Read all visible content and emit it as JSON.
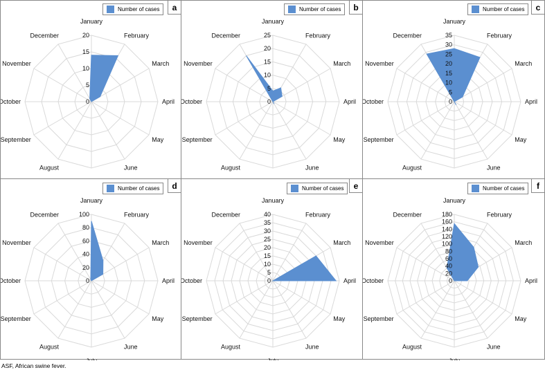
{
  "legend_label": "Number of cases",
  "months": [
    "January",
    "February",
    "March",
    "April",
    "May",
    "June",
    "July",
    "August",
    "September",
    "October",
    "November",
    "December"
  ],
  "footnote": "ASF, African swine fever.",
  "colors": {
    "fill": "#5b8fd0",
    "grid": "#d9d9d9",
    "border": "#888888"
  },
  "chart_data": [
    {
      "type": "radar",
      "panel": "a",
      "ticks": [
        0,
        5,
        10,
        15,
        20
      ],
      "rmax": 20,
      "series": [
        {
          "name": "Number of cases",
          "values": [
            14,
            16,
            3,
            0,
            0,
            0,
            0,
            0,
            0,
            0,
            0,
            1
          ]
        }
      ]
    },
    {
      "type": "radar",
      "panel": "b",
      "ticks": [
        0,
        5,
        10,
        15,
        20,
        25
      ],
      "rmax": 25,
      "series": [
        {
          "name": "Number of cases",
          "values": [
            4,
            6,
            4,
            0,
            0,
            1,
            0,
            0,
            0,
            0,
            0,
            20
          ]
        }
      ]
    },
    {
      "type": "radar",
      "panel": "c",
      "ticks": [
        0,
        5,
        10,
        15,
        20,
        25,
        30,
        35
      ],
      "rmax": 35,
      "series": [
        {
          "name": "Number of cases",
          "values": [
            28,
            27,
            5,
            0,
            0,
            2,
            0,
            0,
            0,
            0,
            0,
            29
          ]
        }
      ]
    },
    {
      "type": "radar",
      "panel": "d",
      "ticks": [
        0,
        20,
        40,
        60,
        80,
        100
      ],
      "rmax": 100,
      "series": [
        {
          "name": "Number of cases",
          "values": [
            90,
            35,
            20,
            0,
            0,
            0,
            0,
            0,
            0,
            0,
            0,
            2
          ]
        }
      ]
    },
    {
      "type": "radar",
      "panel": "e",
      "ticks": [
        0,
        5,
        10,
        15,
        20,
        25,
        30,
        35,
        40
      ],
      "rmax": 40,
      "series": [
        {
          "name": "Number of cases",
          "values": [
            0,
            0,
            30,
            38,
            0,
            0,
            0,
            0,
            0,
            0,
            0,
            0
          ]
        }
      ]
    },
    {
      "type": "radar",
      "panel": "f",
      "ticks": [
        0,
        20,
        40,
        60,
        80,
        100,
        120,
        140,
        160,
        180
      ],
      "rmax": 180,
      "series": [
        {
          "name": "Number of cases",
          "values": [
            155,
            105,
            75,
            35,
            0,
            0,
            0,
            0,
            0,
            0,
            0,
            40
          ]
        }
      ]
    }
  ]
}
